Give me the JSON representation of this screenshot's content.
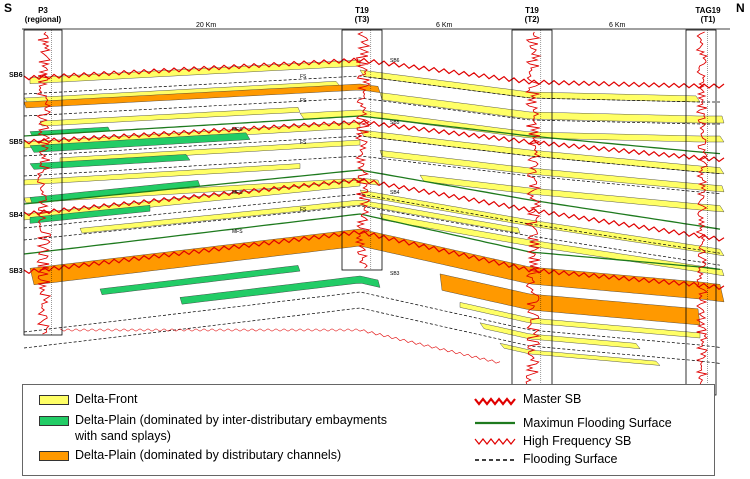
{
  "directions": {
    "left": "S",
    "right": "N"
  },
  "wells": [
    {
      "name": "P3",
      "sub": "(regional)"
    },
    {
      "name": "T19",
      "sub": "(T3)"
    },
    {
      "name": "T19",
      "sub": "(T2)"
    },
    {
      "name": "TAG19",
      "sub": "(T1)"
    }
  ],
  "distances": [
    "20 Km",
    "6 Km",
    "6 Km"
  ],
  "sequence_boundaries": [
    "SB6",
    "SB5",
    "SB4",
    "SB3"
  ],
  "in_section_labels": [
    "SB6",
    "SB5",
    "SB4",
    "SB3",
    "MFS",
    "MFS",
    "MFS",
    "FS",
    "FS",
    "FS",
    "FS"
  ],
  "legend": {
    "delta_front": "Delta-Front",
    "delta_plain_embayments_line1": "Delta-Plain (dominated by inter-distributary embayments",
    "delta_plain_embayments_line2": "with sand splays)",
    "delta_plain_channels": "Delta-Plain (dominated by distributary channels)",
    "master_sb": "Master SB",
    "mfs": "Maximun Flooding Surface",
    "hf_sb": "High Frequency SB",
    "fs": "Flooding Surface"
  },
  "colors": {
    "delta_front": "#ffff66",
    "delta_plain_green": "#22cc66",
    "delta_plain_orange": "#ff9900",
    "master_sb": "#e00000",
    "mfs": "#1e7a1e",
    "log": "#e00000"
  }
}
